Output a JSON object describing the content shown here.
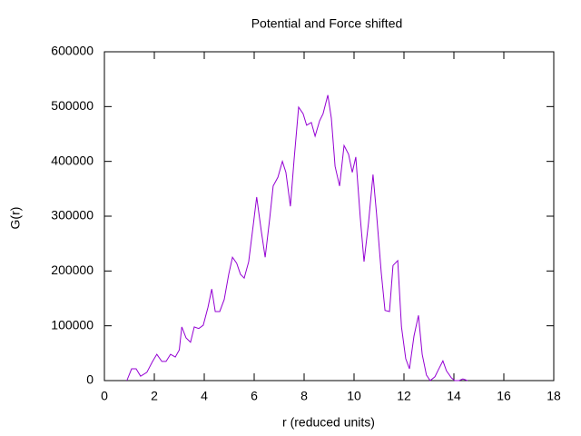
{
  "chart_data": {
    "type": "line",
    "title": "Potential and Force shifted",
    "x_label": "r (reduced units)",
    "y_label": "G(r)",
    "x": [
      0.9,
      1.09,
      1.27,
      1.45,
      1.7,
      1.93,
      2.1,
      2.3,
      2.47,
      2.65,
      2.84,
      3.0,
      3.1,
      3.27,
      3.45,
      3.6,
      3.78,
      3.96,
      4.15,
      4.3,
      4.44,
      4.62,
      4.8,
      4.98,
      5.13,
      5.3,
      5.45,
      5.6,
      5.78,
      5.96,
      6.1,
      6.29,
      6.44,
      6.62,
      6.76,
      6.95,
      7.13,
      7.27,
      7.45,
      7.6,
      7.78,
      7.96,
      8.1,
      8.29,
      8.44,
      8.62,
      8.76,
      8.95,
      9.09,
      9.24,
      9.42,
      9.6,
      9.78,
      9.93,
      10.07,
      10.25,
      10.4,
      10.58,
      10.76,
      10.9,
      11.09,
      11.24,
      11.42,
      11.56,
      11.75,
      11.9,
      12.07,
      12.22,
      12.4,
      12.58,
      12.73,
      12.9,
      13.05,
      13.24,
      13.38,
      13.56,
      13.7,
      13.9,
      14.04,
      14.2,
      14.36,
      14.55
    ],
    "series": [
      {
        "name": "G(r)",
        "color": "#9400d3",
        "values": [
          0,
          21500,
          21500,
          8000,
          15000,
          35000,
          48000,
          35000,
          35000,
          48000,
          43000,
          56000,
          98000,
          78000,
          70000,
          98000,
          95000,
          101000,
          134000,
          167000,
          126000,
          126000,
          148000,
          194000,
          225000,
          214000,
          194000,
          187000,
          217000,
          283000,
          335000,
          271000,
          225000,
          295000,
          355000,
          371000,
          400000,
          380000,
          318000,
          404000,
          499000,
          487000,
          466000,
          471000,
          446000,
          474000,
          487000,
          521000,
          479000,
          391000,
          355000,
          429000,
          413000,
          380000,
          408000,
          297000,
          217000,
          288000,
          376000,
          305000,
          197000,
          128000,
          126000,
          210000,
          219000,
          98000,
          40000,
          21500,
          81000,
          119000,
          48000,
          10000,
          0,
          7000,
          20000,
          36000,
          18000,
          5000,
          0,
          0,
          3000,
          0
        ]
      }
    ],
    "xlim": [
      0,
      18
    ],
    "xticks": [
      0,
      2,
      4,
      6,
      8,
      10,
      12,
      14,
      16,
      18
    ],
    "ylim": [
      0,
      600000
    ],
    "yticks": [
      0,
      100000,
      200000,
      300000,
      400000,
      500000,
      600000
    ]
  }
}
